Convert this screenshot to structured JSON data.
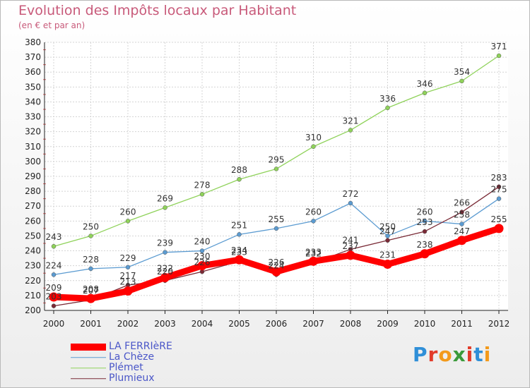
{
  "title": "Evolution des Impôts locaux par Habitant",
  "subtitle": "(en € et par an)",
  "chart_data": {
    "type": "line",
    "x": [
      2000,
      2001,
      2002,
      2003,
      2004,
      2005,
      2006,
      2007,
      2008,
      2009,
      2010,
      2011,
      2012
    ],
    "ylim": [
      200,
      380
    ],
    "yticks": [
      200,
      210,
      220,
      230,
      240,
      250,
      260,
      270,
      280,
      290,
      300,
      310,
      320,
      330,
      340,
      350,
      360,
      370,
      380
    ],
    "grid": true,
    "legend": "bottom-left",
    "series": [
      {
        "name": "Plémet",
        "color": "#8fd25a",
        "values": [
          243,
          250,
          260,
          269,
          278,
          288,
          295,
          310,
          321,
          336,
          346,
          354,
          371
        ]
      },
      {
        "name": "La Chèze",
        "color": "#5b9bd1",
        "values": [
          224,
          228,
          229,
          239,
          240,
          251,
          255,
          260,
          272,
          250,
          260,
          258,
          275
        ]
      },
      {
        "name": "Plumieux",
        "color": "#7a2a36",
        "values": [
          203,
          207,
          217,
          220,
          226,
          233,
          224,
          232,
          241,
          247,
          253,
          266,
          283
        ]
      },
      {
        "name": "LA FERRIèRE",
        "color": "#ff0000",
        "values": [
          209,
          208,
          213,
          222,
          230,
          234,
          226,
          233,
          237,
          231,
          238,
          247,
          255
        ]
      }
    ]
  },
  "legend_order": [
    "LA FERRIèRE",
    "La Chèze",
    "Plémet",
    "Plumieux"
  ],
  "logo": {
    "text": "Proxiti",
    "colors": [
      "#2f8fd8",
      "#e23b2a",
      "#f39a1b",
      "#3a9a3a",
      "#e23b2a",
      "#2f8fd8",
      "#f39a1b"
    ]
  }
}
